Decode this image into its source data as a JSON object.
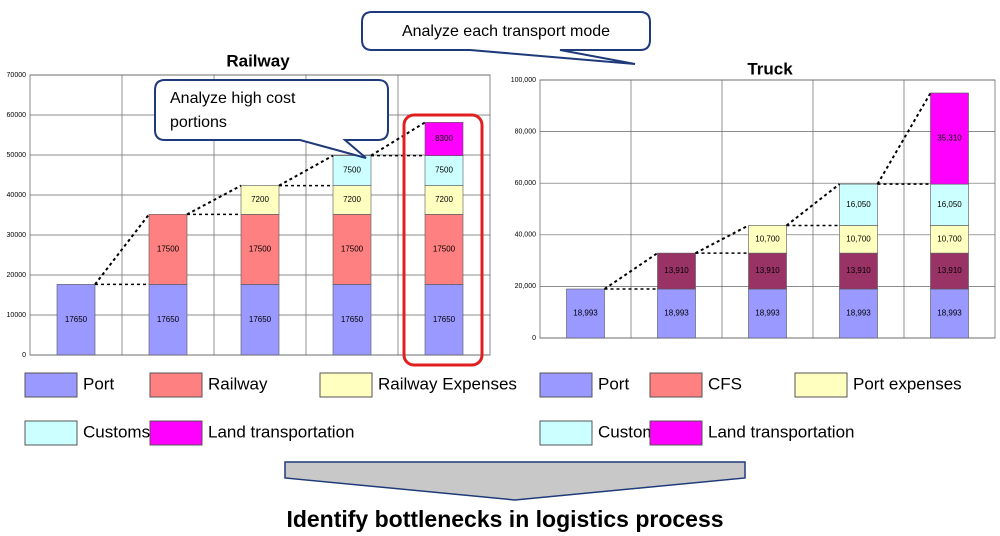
{
  "chart_data": [
    {
      "type": "stacked-bar",
      "title": "Railway",
      "categories": [
        null,
        null,
        null,
        null,
        null
      ],
      "series": [
        {
          "name": "Port",
          "color": "#9999ff",
          "values": [
            17650,
            17650,
            17650,
            17650,
            17650
          ]
        },
        {
          "name": "Railway",
          "color": "#ff8080",
          "values": [
            null,
            17500,
            17500,
            17500,
            17500
          ]
        },
        {
          "name": "Railway Expenses",
          "color": "#ffffc0",
          "values": [
            null,
            null,
            7200,
            7200,
            7200
          ]
        },
        {
          "name": "Customs",
          "color": "#ccffff",
          "values": [
            null,
            null,
            null,
            7500,
            7500
          ]
        },
        {
          "name": "Land transportation",
          "color": "#ff00ff",
          "values": [
            null,
            null,
            null,
            null,
            8300
          ]
        }
      ],
      "ylim": [
        0,
        70000
      ],
      "yticks": [
        0,
        10000,
        20000,
        30000,
        40000,
        50000,
        60000,
        70000
      ],
      "grid": true
    },
    {
      "type": "stacked-bar",
      "title": "Truck",
      "categories": [
        null,
        null,
        null,
        null,
        null
      ],
      "series": [
        {
          "name": "Port",
          "color": "#9999ff",
          "values": [
            18993,
            18993,
            18993,
            18993,
            18993
          ],
          "value_labels": [
            "18,993",
            "18,993",
            "18,993",
            "18,993",
            "18,993"
          ]
        },
        {
          "name": "CFS",
          "color": "#993366",
          "values": [
            null,
            13910,
            13910,
            13910,
            13910
          ],
          "value_labels": [
            null,
            "13,910",
            "13,910",
            "13,910",
            "13,910"
          ]
        },
        {
          "name": "Port expenses",
          "color": "#ffffc0",
          "values": [
            null,
            null,
            10700,
            10700,
            10700
          ],
          "value_labels": [
            null,
            null,
            "10,700",
            "10,700",
            "10,700"
          ]
        },
        {
          "name": "Custom",
          "color": "#ccffff",
          "values": [
            null,
            null,
            null,
            16050,
            16050
          ],
          "value_labels": [
            null,
            null,
            null,
            "16,050",
            "16,050"
          ]
        },
        {
          "name": "Land transportation",
          "color": "#ff00ff",
          "values": [
            null,
            null,
            null,
            null,
            35310
          ],
          "value_labels": [
            null,
            null,
            null,
            null,
            "35,310"
          ]
        }
      ],
      "ylim": [
        0,
        100000
      ],
      "yticks": [
        0,
        {
          "value": 20000,
          "label": "20,000"
        },
        {
          "value": 40000,
          "label": "40,000"
        },
        {
          "value": 60000,
          "label": "60,000"
        },
        {
          "value": 80000,
          "label": "80,000"
        },
        {
          "value": 100000,
          "label": "100,000"
        }
      ],
      "grid": true
    }
  ],
  "callouts": [
    "Analyze each transport mode",
    "Analyze high cost portions"
  ],
  "conclusion": "Identify bottlenecks in logistics process"
}
